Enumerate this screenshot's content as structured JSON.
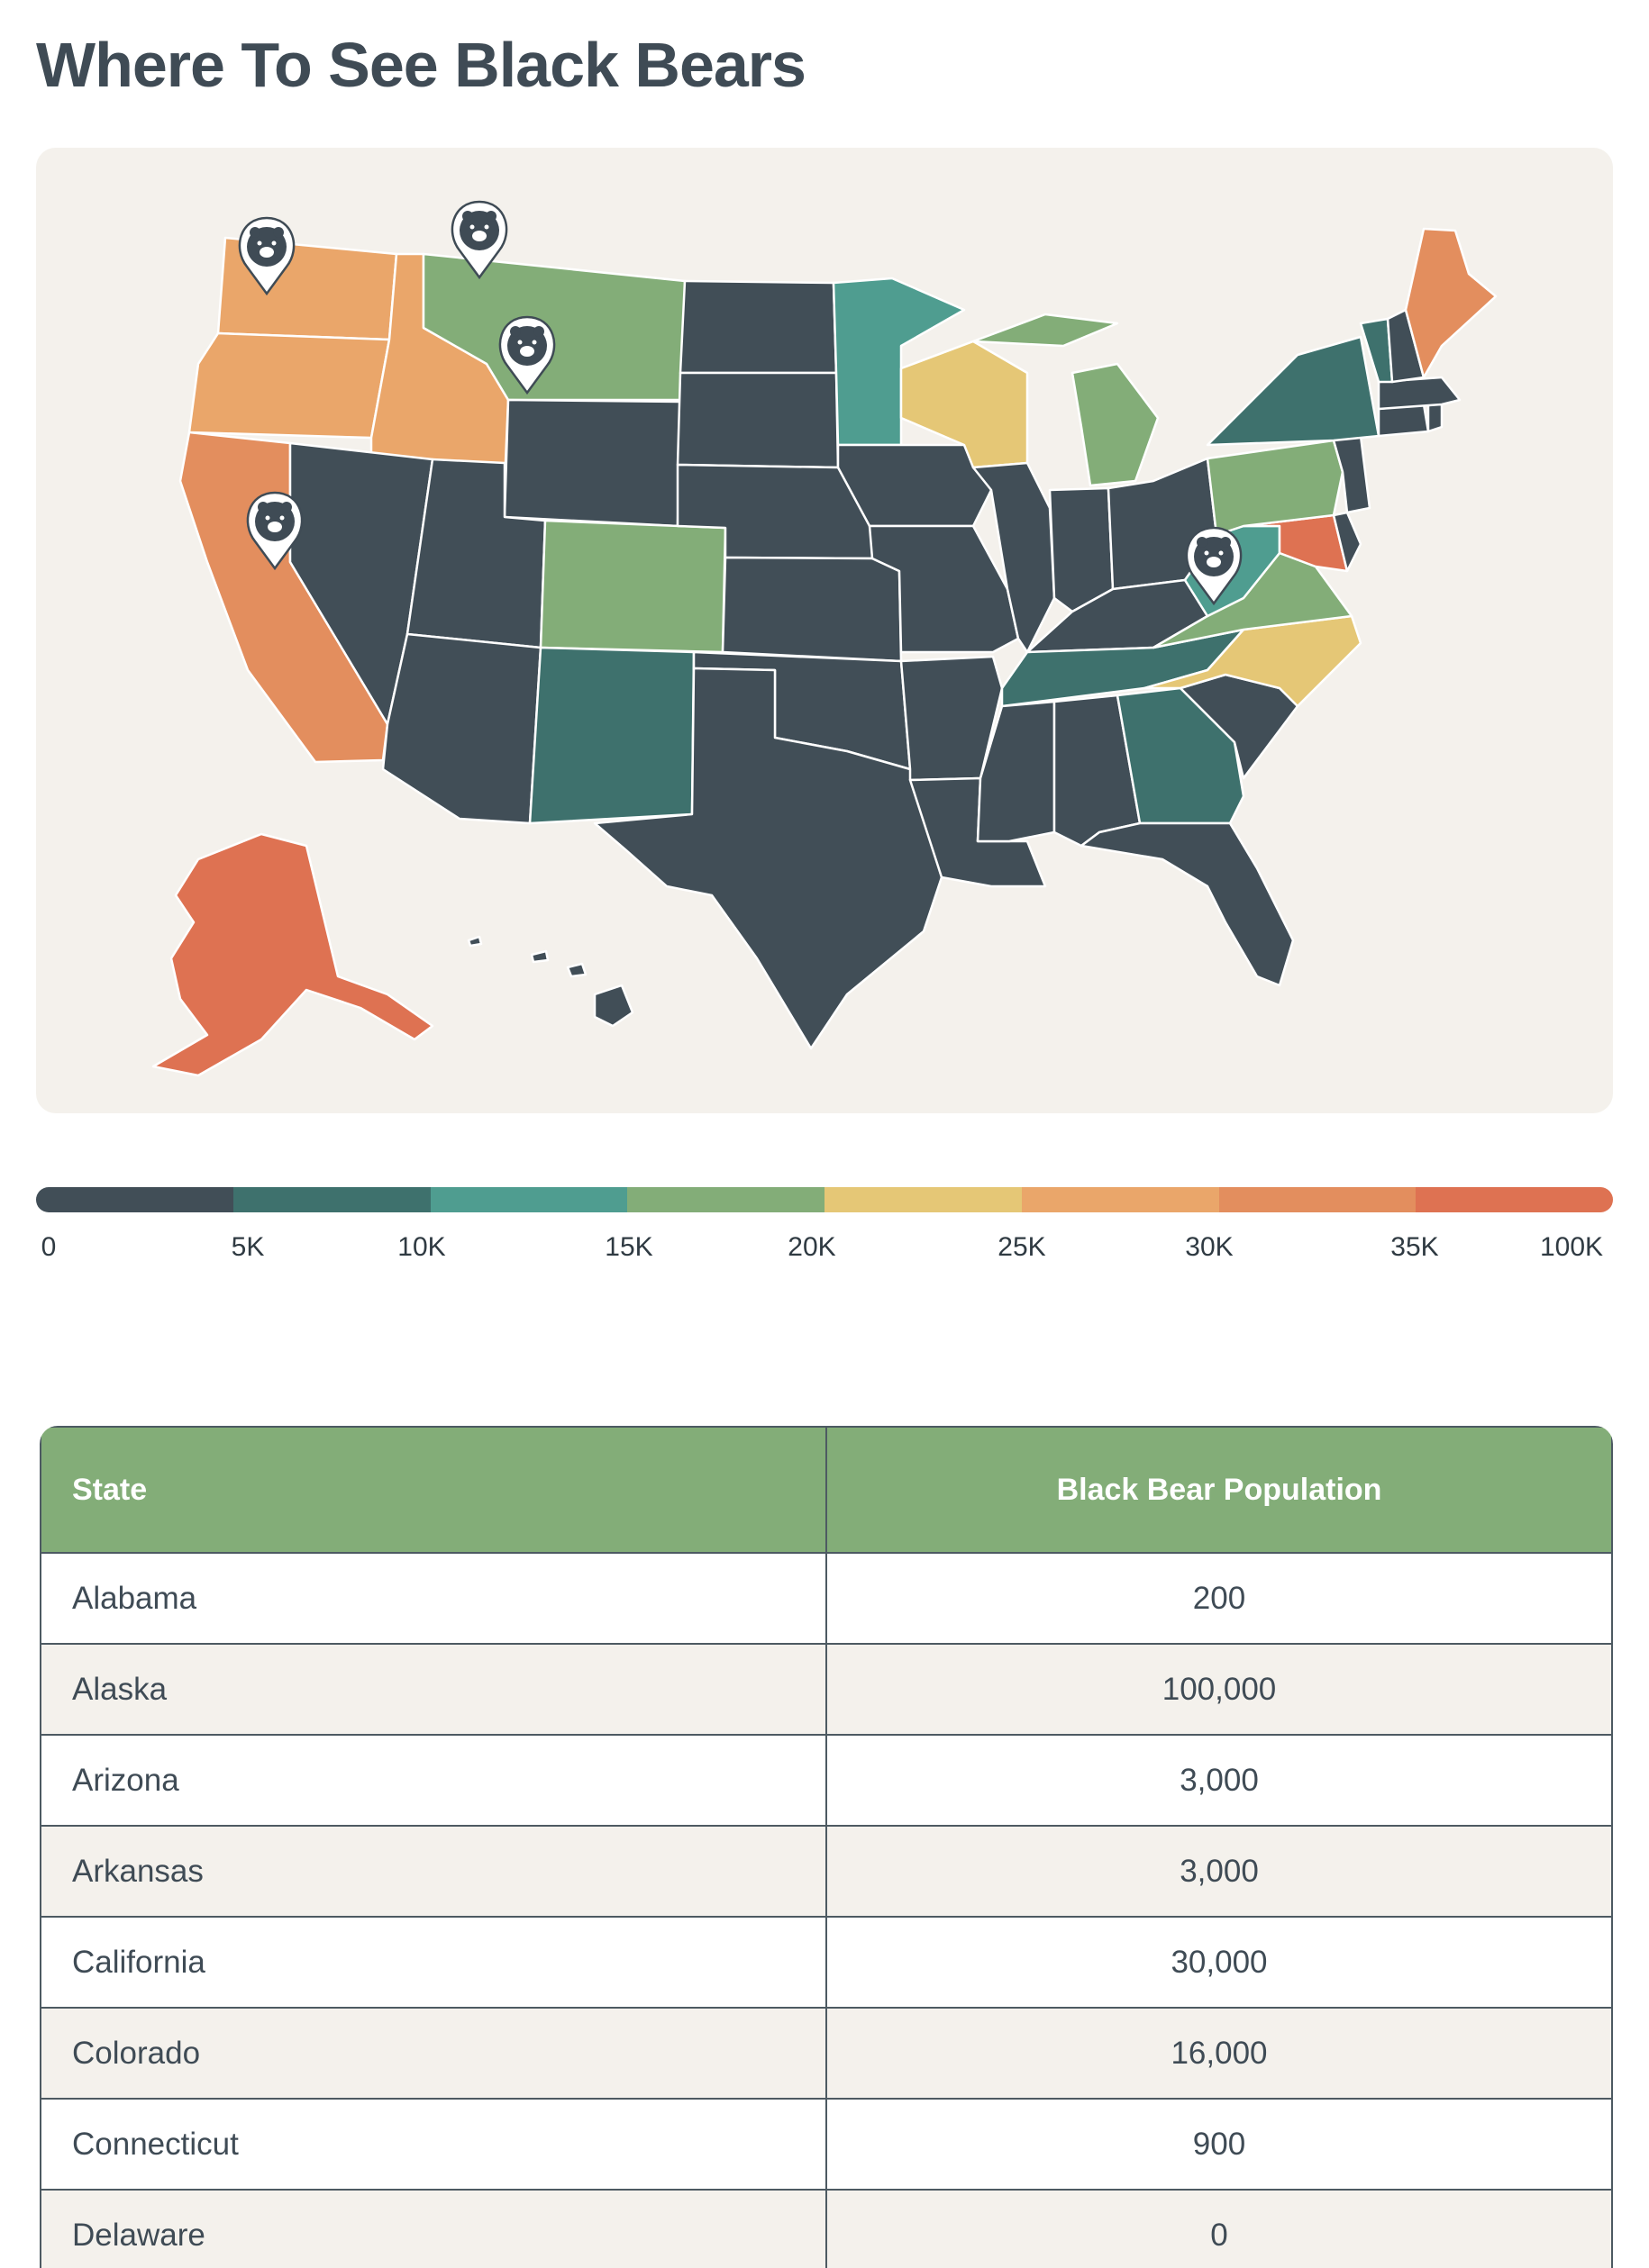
{
  "title": "Where To See Black Bears",
  "map": {
    "region": "United States",
    "marker_icon": "bear-pin-icon",
    "states": [
      {
        "name": "Washington",
        "color": "#eaa66a"
      },
      {
        "name": "Oregon",
        "color": "#eaa66a"
      },
      {
        "name": "Idaho",
        "color": "#eaa66a"
      },
      {
        "name": "California",
        "color": "#e38e5e"
      },
      {
        "name": "Nevada",
        "color": "#414e57"
      },
      {
        "name": "Montana",
        "color": "#83ad78"
      },
      {
        "name": "Wyoming",
        "color": "#414e57"
      },
      {
        "name": "Utah",
        "color": "#414e57"
      },
      {
        "name": "Colorado",
        "color": "#83ad78"
      },
      {
        "name": "Arizona",
        "color": "#414e57"
      },
      {
        "name": "New Mexico",
        "color": "#3e716d"
      },
      {
        "name": "North Dakota",
        "color": "#414e57"
      },
      {
        "name": "South Dakota",
        "color": "#414e57"
      },
      {
        "name": "Nebraska",
        "color": "#414e57"
      },
      {
        "name": "Kansas",
        "color": "#414e57"
      },
      {
        "name": "Oklahoma",
        "color": "#414e57"
      },
      {
        "name": "Texas",
        "color": "#414e57"
      },
      {
        "name": "Minnesota",
        "color": "#4f9d90"
      },
      {
        "name": "Iowa",
        "color": "#414e57"
      },
      {
        "name": "Missouri",
        "color": "#414e57"
      },
      {
        "name": "Arkansas",
        "color": "#414e57"
      },
      {
        "name": "Louisiana",
        "color": "#414e57"
      },
      {
        "name": "Wisconsin",
        "color": "#e5c776"
      },
      {
        "name": "Michigan",
        "color": "#83ad78"
      },
      {
        "name": "Illinois",
        "color": "#414e57"
      },
      {
        "name": "Indiana",
        "color": "#414e57"
      },
      {
        "name": "Ohio",
        "color": "#414e57"
      },
      {
        "name": "Kentucky",
        "color": "#414e57"
      },
      {
        "name": "Tennessee",
        "color": "#3e716d"
      },
      {
        "name": "Mississippi",
        "color": "#414e57"
      },
      {
        "name": "Alabama",
        "color": "#414e57"
      },
      {
        "name": "Georgia",
        "color": "#3e716d"
      },
      {
        "name": "Florida",
        "color": "#414e57"
      },
      {
        "name": "South Carolina",
        "color": "#414e57"
      },
      {
        "name": "North Carolina",
        "color": "#e5c776"
      },
      {
        "name": "Virginia",
        "color": "#83ad78"
      },
      {
        "name": "West Virginia",
        "color": "#4f9d90"
      },
      {
        "name": "Maryland",
        "color": "#de7252"
      },
      {
        "name": "Delaware",
        "color": "#414e57"
      },
      {
        "name": "Pennsylvania",
        "color": "#83ad78"
      },
      {
        "name": "New Jersey",
        "color": "#414e57"
      },
      {
        "name": "New York",
        "color": "#3e716d"
      },
      {
        "name": "Connecticut",
        "color": "#414e57"
      },
      {
        "name": "Rhode Island",
        "color": "#414e57"
      },
      {
        "name": "Massachusetts",
        "color": "#414e57"
      },
      {
        "name": "Vermont",
        "color": "#3e716d"
      },
      {
        "name": "New Hampshire",
        "color": "#414e57"
      },
      {
        "name": "Maine",
        "color": "#e38e5e"
      },
      {
        "name": "Alaska",
        "color": "#de7252"
      },
      {
        "name": "Hawaii",
        "color": "#414e57"
      }
    ]
  },
  "legend": {
    "colors": [
      "#414e57",
      "#3e716d",
      "#4f9d90",
      "#83ad78",
      "#e5c776",
      "#eaa66a",
      "#e38e5e",
      "#de7252"
    ],
    "labels": [
      "0",
      "5K",
      "10K",
      "15K",
      "20K",
      "25K",
      "30K",
      "35K",
      "100K"
    ]
  },
  "table": {
    "headers": {
      "state": "State",
      "population": "Black Bear Population"
    },
    "rows": [
      {
        "state": "Alabama",
        "population": "200"
      },
      {
        "state": "Alaska",
        "population": "100,000"
      },
      {
        "state": "Arizona",
        "population": "3,000"
      },
      {
        "state": "Arkansas",
        "population": "3,000"
      },
      {
        "state": "California",
        "population": "30,000"
      },
      {
        "state": "Colorado",
        "population": "16,000"
      },
      {
        "state": "Connecticut",
        "population": "900"
      },
      {
        "state": "Delaware",
        "population": "0"
      },
      {
        "state": "",
        "population": ""
      }
    ]
  }
}
